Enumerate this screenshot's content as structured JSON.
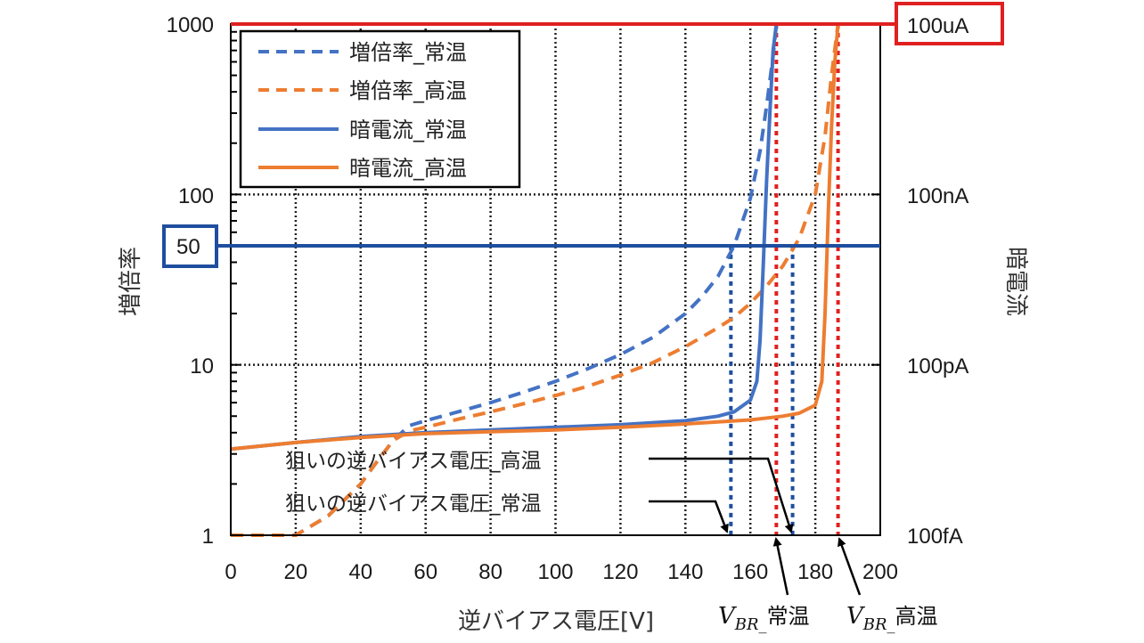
{
  "chart_data": {
    "type": "line",
    "title": "",
    "xlabel": "逆バイアス電圧[V]",
    "ylabel": "増倍率",
    "y2label": "暗電流",
    "xlim": [
      0,
      200
    ],
    "ylim": [
      1,
      1000
    ],
    "yscale": "log",
    "grid": true,
    "x_ticks": [
      "0",
      "20",
      "40",
      "60",
      "80",
      "100",
      "120",
      "140",
      "160",
      "180",
      "200"
    ],
    "y_ticks": [
      "1",
      "10",
      "100",
      "1000"
    ],
    "y2_ticks": [
      "100fA",
      "100pA",
      "100nA",
      "100uA"
    ],
    "legend_position": "upper-left",
    "series": [
      {
        "name": "増倍率_常温",
        "style": "dashed",
        "color": "#4472c4",
        "x": [
          0,
          20,
          30,
          40,
          45,
          50,
          55,
          60,
          70,
          80,
          90,
          100,
          110,
          120,
          130,
          140,
          145,
          150,
          155,
          160,
          163,
          165,
          167,
          168
        ],
        "y": [
          1,
          1,
          1.3,
          2.0,
          2.7,
          3.6,
          4.4,
          4.7,
          5.3,
          6.0,
          6.9,
          8.0,
          9.5,
          11.5,
          14.5,
          20,
          25,
          33,
          50,
          95,
          180,
          330,
          650,
          1000
        ]
      },
      {
        "name": "増倍率_高温",
        "style": "dashed",
        "color": "#ed7d31",
        "x": [
          0,
          20,
          30,
          40,
          45,
          50,
          55,
          60,
          70,
          80,
          90,
          100,
          110,
          120,
          130,
          140,
          150,
          155,
          160,
          165,
          170,
          175,
          180,
          183,
          185,
          187
        ],
        "y": [
          1,
          1,
          1.3,
          2.0,
          2.7,
          3.6,
          4.1,
          4.3,
          4.8,
          5.3,
          5.9,
          6.6,
          7.5,
          8.7,
          10.3,
          12.8,
          16.5,
          19,
          23,
          29,
          38,
          55,
          100,
          220,
          500,
          1000
        ]
      },
      {
        "name": "暗電流_常温",
        "style": "solid",
        "color": "#4472c4",
        "x": [
          0,
          20,
          40,
          60,
          80,
          100,
          120,
          140,
          150,
          155,
          160,
          162,
          163,
          164,
          165,
          166,
          167,
          168
        ],
        "y_gain_axis_equiv": [
          3.2,
          3.5,
          3.8,
          4.0,
          4.15,
          4.3,
          4.45,
          4.7,
          5.0,
          5.3,
          6.2,
          8,
          14,
          40,
          120,
          300,
          700,
          1000
        ],
        "unit_note": "dark current plotted on right log axis; 1→100fA, 10→100pA, 100→100nA, 1000→100uA"
      },
      {
        "name": "暗電流_高温",
        "style": "solid",
        "color": "#ed7d31",
        "x": [
          0,
          20,
          40,
          60,
          80,
          100,
          120,
          140,
          160,
          170,
          175,
          180,
          182,
          183,
          184,
          185,
          186,
          187
        ],
        "y_gain_axis_equiv": [
          3.2,
          3.5,
          3.75,
          3.95,
          4.05,
          4.15,
          4.3,
          4.5,
          4.75,
          5.0,
          5.2,
          5.8,
          8,
          20,
          80,
          250,
          600,
          1000
        ],
        "unit_note": "dark current plotted on right log axis"
      }
    ],
    "reference_lines": [
      {
        "type": "horizontal",
        "value": 1000,
        "color": "#e02020",
        "label": "100uA"
      },
      {
        "type": "horizontal",
        "value": 50,
        "color": "#1f4e9e",
        "label": "50"
      },
      {
        "type": "vertical",
        "x": 154,
        "color": "#1f4e9e",
        "style": "dotted",
        "meaning": "狙いの逆バイアス電圧_常温"
      },
      {
        "type": "vertical",
        "x": 173,
        "color": "#1f4e9e",
        "style": "dotted",
        "meaning": "狙いの逆バイアス電圧_高温"
      },
      {
        "type": "vertical",
        "x": 168,
        "color": "#e02020",
        "style": "dotted",
        "meaning": "V_BR_常温"
      },
      {
        "type": "vertical",
        "x": 187,
        "color": "#e02020",
        "style": "dotted",
        "meaning": "V_BR_高温"
      }
    ],
    "annotations": [
      "狙いの逆バイアス電圧_高温",
      "狙いの逆バイアス電圧_常温",
      "V_BR_常温",
      "V_BR_高温"
    ]
  },
  "labels": {
    "y_ticks": [
      "1000",
      "100",
      "10",
      "1"
    ],
    "y2_ticks": [
      "100uA",
      "100nA",
      "100pA",
      "100fA"
    ],
    "x_ticks": [
      "0",
      "20",
      "40",
      "60",
      "80",
      "100",
      "120",
      "140",
      "160",
      "180",
      "200"
    ],
    "xlabel": "逆バイアス電圧[V]",
    "ylabel": "増倍率",
    "y2label": "暗電流",
    "gain_marker": "50",
    "legend": [
      "増倍率_常温",
      "増倍率_高温",
      "暗電流_常温",
      "暗電流_高温"
    ],
    "anno_high": "狙いの逆バイアス電圧_高温",
    "anno_normal": "狙いの逆バイアス電圧_常温",
    "vbr_main": "V",
    "vbr_sub": "BR_",
    "vbr_normal_jp": "常温",
    "vbr_high_jp": "高温"
  },
  "colors": {
    "blue": "#4472c4",
    "orange": "#ed7d31",
    "navy": "#1f4e9e",
    "red": "#e02020"
  }
}
